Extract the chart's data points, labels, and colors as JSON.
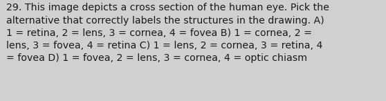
{
  "lines": [
    "29. This image depicts a cross section of the human eye. Pick the",
    "alternative that correctly labels the structures in the drawing. A)",
    "1 = retina, 2 = lens, 3 = cornea, 4 = fovea B) 1 = cornea, 2 =",
    "lens, 3 = fovea, 4 = retina C) 1 = lens, 2 = cornea, 3 = retina, 4",
    "= fovea D) 1 = fovea, 2 = lens, 3 = cornea, 4 = optic chiasm"
  ],
  "background_color": "#d0d0d0",
  "text_color": "#1a1a1a",
  "font_size": 10.2,
  "fig_width": 5.58,
  "fig_height": 1.46,
  "dpi": 100
}
